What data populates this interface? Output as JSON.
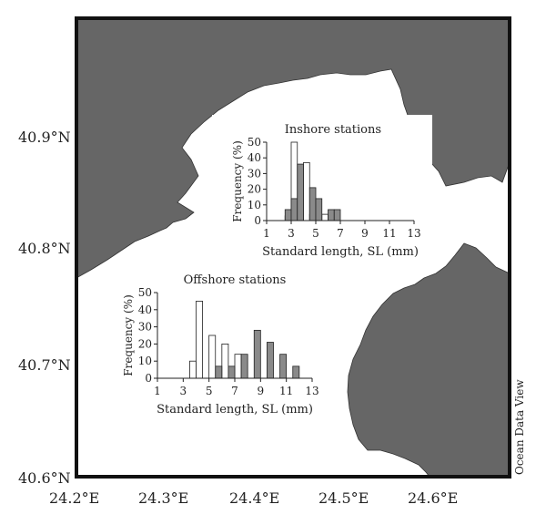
{
  "map": {
    "lat_labels": [
      "40.9°N",
      "40.8°N",
      "40.7°N",
      "40.6°N"
    ],
    "lon_labels": [
      "24.2°E",
      "24.3°E",
      "24.4°E",
      "24.5°E",
      "24.6°E"
    ],
    "credit": "Ocean Data View",
    "colors": {
      "land": "#666666",
      "sea": "#ffffff",
      "open_bar": "#ffffff",
      "filled_bar": "#8a8a8a"
    }
  },
  "chart_data": [
    {
      "type": "bar",
      "title": "Inshore stations",
      "xlabel": "Standard length, SL (mm)",
      "ylabel": "Frequency (%)",
      "x_ticks": [
        1,
        3,
        5,
        7,
        9,
        11,
        13
      ],
      "y_ticks": [
        0,
        10,
        20,
        30,
        40,
        50
      ],
      "xlim": [
        1,
        13
      ],
      "ylim": [
        0,
        50
      ],
      "series": [
        {
          "style": "open",
          "x": [
            2.75,
            3.25,
            4.25,
            4.75,
            5.75
          ],
          "values": [
            3,
            50,
            37,
            4,
            4
          ]
        },
        {
          "style": "filled",
          "x": [
            2.75,
            3.25,
            3.75,
            4.75,
            5.25,
            6.25,
            6.75
          ],
          "values": [
            7,
            14,
            36,
            21,
            14,
            7,
            7
          ]
        }
      ]
    },
    {
      "type": "bar",
      "title": "Offshore stations",
      "xlabel": "Standard length, SL (mm)",
      "ylabel": "Frequency (%)",
      "x_ticks": [
        1,
        3,
        5,
        7,
        9,
        11,
        13
      ],
      "y_ticks": [
        0,
        10,
        20,
        30,
        40,
        50
      ],
      "xlim": [
        1,
        13
      ],
      "ylim": [
        0,
        50
      ],
      "series": [
        {
          "style": "open",
          "x": [
            3.75,
            4.25,
            5.25,
            6.25,
            7.25
          ],
          "values": [
            10,
            45,
            25,
            20,
            14
          ]
        },
        {
          "style": "filled",
          "x": [
            5.75,
            6.75,
            7.75,
            8.75,
            9.75,
            10.75,
            11.75
          ],
          "values": [
            7,
            7,
            14,
            28,
            21,
            14,
            7
          ]
        }
      ]
    }
  ]
}
